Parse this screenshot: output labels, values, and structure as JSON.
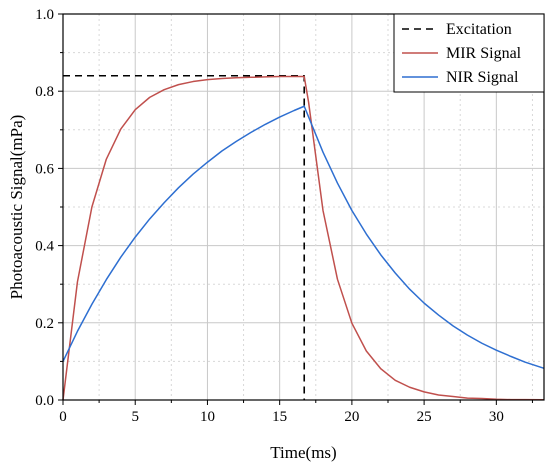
{
  "chart_data": {
    "type": "line",
    "title": "",
    "xlabel": "Time(ms)",
    "ylabel": "Photoacoustic Signal(mPa)",
    "xlim": [
      0,
      33.3
    ],
    "ylim": [
      0,
      1.0
    ],
    "x_ticks": [
      0,
      5,
      10,
      15,
      20,
      25,
      30
    ],
    "y_ticks": [
      0.0,
      0.2,
      0.4,
      0.6,
      0.8,
      1.0
    ],
    "x_tick_labels": [
      "0",
      "5",
      "10",
      "15",
      "20",
      "25",
      "30"
    ],
    "y_tick_labels": [
      "0.0",
      "0.2",
      "0.4",
      "0.6",
      "0.8",
      "1.0"
    ],
    "grid": true,
    "legend_position": "top-right",
    "series": [
      {
        "name": "Excitation",
        "color": "#000000",
        "style": "dashed",
        "x": [
          0,
          16.7,
          16.7
        ],
        "y": [
          0.84,
          0.84,
          0.0
        ]
      },
      {
        "name": "MIR Signal",
        "color": "#c0504d",
        "style": "solid",
        "x": [
          0,
          1,
          2,
          3,
          4,
          5,
          6,
          7,
          8,
          9,
          10,
          11,
          12,
          13,
          14,
          15,
          16,
          16.7,
          17,
          18,
          19,
          20,
          21,
          22,
          23,
          24,
          25,
          26,
          27,
          28,
          29,
          30,
          31,
          32,
          33.3
        ],
        "y": [
          0.0,
          0.306,
          0.5,
          0.624,
          0.702,
          0.752,
          0.784,
          0.804,
          0.817,
          0.825,
          0.83,
          0.833,
          0.835,
          0.836,
          0.837,
          0.838,
          0.838,
          0.838,
          0.772,
          0.491,
          0.313,
          0.199,
          0.127,
          0.081,
          0.051,
          0.033,
          0.021,
          0.013,
          0.009,
          0.005,
          0.004,
          0.002,
          0.001,
          0.001,
          0.0005
        ]
      },
      {
        "name": "NIR Signal",
        "color": "#2e6fd1",
        "style": "solid",
        "x": [
          0,
          1,
          2,
          3,
          4,
          5,
          6,
          7,
          8,
          9,
          10,
          11,
          12,
          13,
          14,
          15,
          16,
          16.7,
          18,
          19,
          20,
          21,
          22,
          23,
          24,
          25,
          26,
          27,
          28,
          29,
          30,
          31,
          32,
          33.3
        ],
        "y": [
          0.1,
          0.178,
          0.248,
          0.312,
          0.37,
          0.422,
          0.469,
          0.511,
          0.55,
          0.585,
          0.616,
          0.645,
          0.67,
          0.693,
          0.714,
          0.733,
          0.75,
          0.761,
          0.642,
          0.562,
          0.491,
          0.43,
          0.376,
          0.329,
          0.287,
          0.251,
          0.22,
          0.192,
          0.168,
          0.147,
          0.129,
          0.113,
          0.098,
          0.082
        ]
      }
    ]
  }
}
